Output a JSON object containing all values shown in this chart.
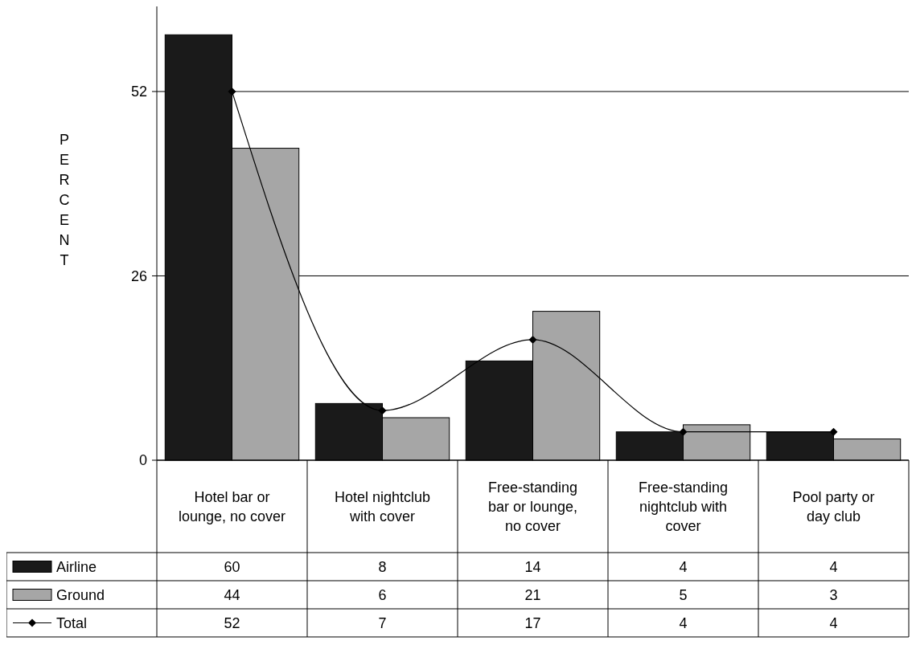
{
  "chart_data": {
    "type": "bar",
    "ylabel": "PERCENT",
    "categories": [
      "Hotel bar or lounge, no cover",
      "Hotel nightclub with cover",
      "Free-standing bar or lounge, no cover",
      "Free-standing nightclub with cover",
      "Pool party or day club"
    ],
    "series": [
      {
        "name": "Airline",
        "color": "#1a1a1a",
        "values": [
          60,
          8,
          14,
          4,
          4
        ]
      },
      {
        "name": "Ground",
        "color": "#a6a6a6",
        "values": [
          44,
          6,
          21,
          5,
          3
        ]
      },
      {
        "name": "Total",
        "type": "line",
        "color": "#000000",
        "marker": "diamond",
        "values": [
          52,
          7,
          17,
          4,
          4
        ]
      }
    ],
    "ylim": [
      0,
      64
    ],
    "yticks": [
      0,
      26,
      52
    ],
    "grid": "y",
    "legend": "bottom",
    "data_labels": true
  }
}
